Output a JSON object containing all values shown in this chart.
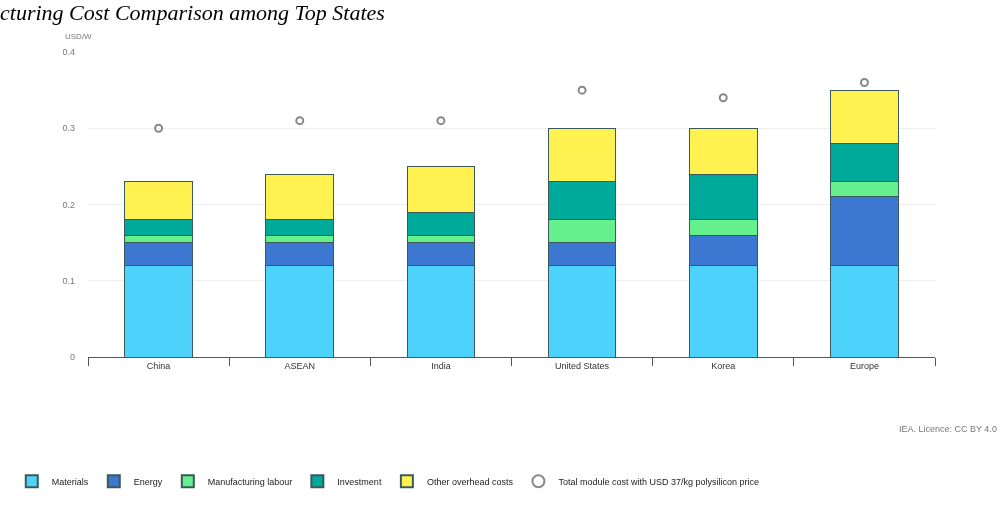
{
  "chart_data": {
    "type": "bar",
    "stacked": true,
    "title": "cturing Cost Comparison among Top States",
    "ylabel": "USD/W",
    "categories": [
      "China",
      "ASEAN",
      "India",
      "United States",
      "Korea",
      "Europe"
    ],
    "series": [
      {
        "name": "Materials",
        "color": "#4dd2fc",
        "values": [
          0.12,
          0.12,
          0.12,
          0.12,
          0.12,
          0.12
        ]
      },
      {
        "name": "Energy",
        "color": "#3c78d2",
        "values": [
          0.03,
          0.03,
          0.03,
          0.03,
          0.04,
          0.09
        ]
      },
      {
        "name": "Manufacturing labour",
        "color": "#64f08c",
        "values": [
          0.01,
          0.01,
          0.01,
          0.03,
          0.02,
          0.02
        ]
      },
      {
        "name": "Investment",
        "color": "#00aa9b",
        "values": [
          0.02,
          0.02,
          0.03,
          0.05,
          0.06,
          0.05
        ]
      },
      {
        "name": "Other overhead costs",
        "color": "#fff250",
        "values": [
          0.05,
          0.06,
          0.06,
          0.07,
          0.06,
          0.07
        ]
      },
      {
        "name": "Total module cost with USD 37/kg polysilicon price",
        "type": "scatter",
        "marker": "circle",
        "color": "#888888",
        "x": [
          "China",
          "ASEAN",
          "India",
          "United States",
          "Korea",
          "Europe"
        ],
        "values": [
          0.3,
          0.31,
          0.31,
          0.35,
          0.34,
          0.36
        ]
      }
    ],
    "ylim": [
      0,
      0.4
    ],
    "yticks": [
      {
        "value": 0,
        "label": "0"
      },
      0.1,
      0.2,
      0.3,
      0.4
    ],
    "grid": "y",
    "legend": "bottom left",
    "annotations": [
      "IEA. Licence: CC BY 4.0"
    ]
  }
}
